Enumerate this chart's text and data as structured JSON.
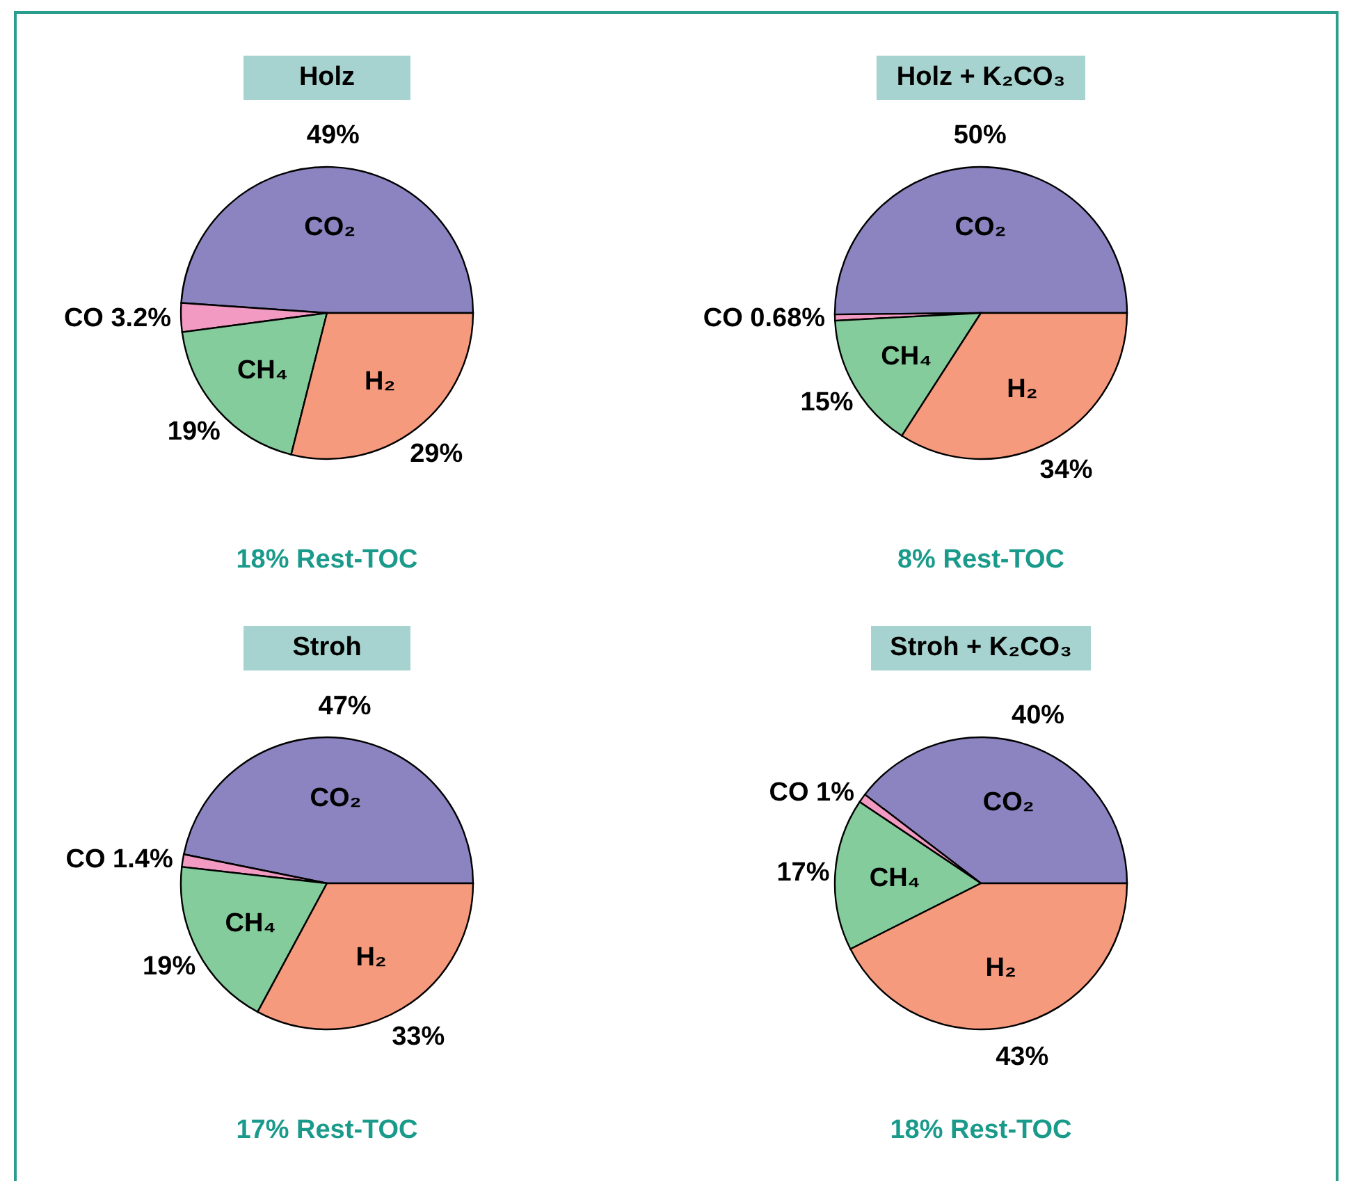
{
  "chart_data": [
    {
      "type": "pie",
      "title": "Holz",
      "categories": [
        "CO₂",
        "CO",
        "CH₄",
        "H₂"
      ],
      "values": [
        49,
        3.2,
        19,
        29
      ],
      "colors": [
        "#8b84c0",
        "#f29ac2",
        "#84cc9c",
        "#f59a7c"
      ],
      "value_labels": [
        "49%",
        "3.2%",
        "19%",
        "29%"
      ],
      "annotations": [
        "18% Rest-TOC"
      ]
    },
    {
      "type": "pie",
      "title": "Holz + K₂CO₃",
      "categories": [
        "CO₂",
        "CO",
        "CH₄",
        "H₂"
      ],
      "values": [
        50,
        0.68,
        15,
        34
      ],
      "colors": [
        "#8b84c0",
        "#f29ac2",
        "#84cc9c",
        "#f59a7c"
      ],
      "value_labels": [
        "50%",
        "0.68%",
        "15%",
        "34%"
      ],
      "annotations": [
        "8% Rest-TOC"
      ]
    },
    {
      "type": "pie",
      "title": "Stroh",
      "categories": [
        "CO₂",
        "CO",
        "CH₄",
        "H₂"
      ],
      "values": [
        47,
        1.4,
        19,
        33
      ],
      "colors": [
        "#8b84c0",
        "#f29ac2",
        "#84cc9c",
        "#f59a7c"
      ],
      "value_labels": [
        "47%",
        "1.4%",
        "19%",
        "33%"
      ],
      "annotations": [
        "17% Rest-TOC"
      ]
    },
    {
      "type": "pie",
      "title": "Stroh + K₂CO₃",
      "categories": [
        "CO₂",
        "CO",
        "CH₄",
        "H₂"
      ],
      "values": [
        40,
        1,
        17,
        43
      ],
      "colors": [
        "#8b84c0",
        "#f29ac2",
        "#84cc9c",
        "#f59a7c"
      ],
      "value_labels": [
        "40%",
        "1%",
        "17%",
        "43%"
      ],
      "annotations": [
        "18% Rest-TOC"
      ]
    }
  ]
}
